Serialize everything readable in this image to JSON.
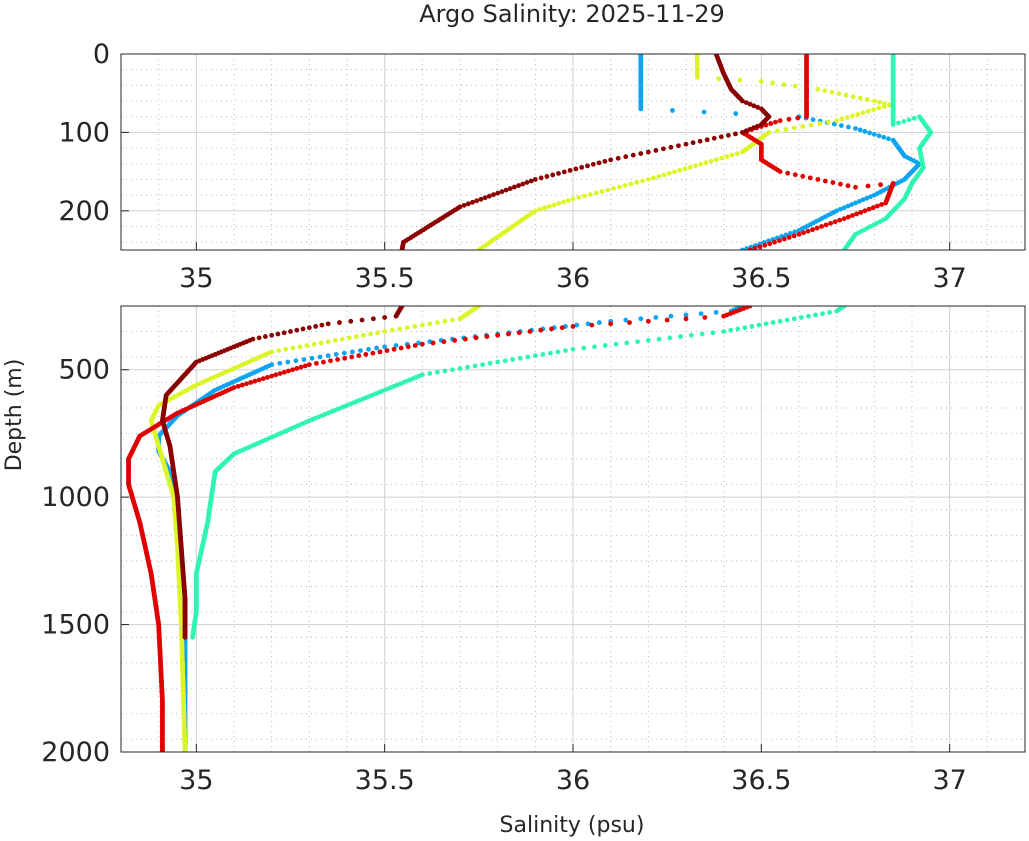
{
  "chart_data": {
    "type": "scatter",
    "title": "Argo Salinity: 2025-11-29",
    "xlabel": "Salinity (psu)",
    "ylabel": "Depth (m)",
    "xlim": [
      34.8,
      37.2
    ],
    "x_ticks": [
      35,
      35.5,
      36,
      36.5,
      37
    ],
    "x_tick_labels": [
      "35",
      "35.5",
      "36",
      "36.5",
      "37"
    ],
    "panels": [
      {
        "name": "upper",
        "ylim": [
          0,
          250
        ],
        "y_ticks": [
          0,
          100,
          200
        ],
        "y_tick_labels": [
          "0",
          "100",
          "200"
        ]
      },
      {
        "name": "lower",
        "ylim": [
          250,
          2000
        ],
        "y_ticks": [
          500,
          1000,
          1500,
          2000
        ],
        "y_tick_labels": [
          "500",
          "1000",
          "1500",
          "2000"
        ]
      }
    ],
    "series": [
      {
        "name": "profile-blue",
        "color": "#0ea5f0",
        "points": [
          [
            36.18,
            0
          ],
          [
            36.18,
            30
          ],
          [
            36.18,
            70
          ],
          [
            36.6,
            80
          ],
          [
            36.75,
            95
          ],
          [
            36.85,
            110
          ],
          [
            36.88,
            130
          ],
          [
            36.92,
            140
          ],
          [
            36.88,
            160
          ],
          [
            36.8,
            180
          ],
          [
            36.7,
            200
          ],
          [
            36.6,
            225
          ],
          [
            36.45,
            250
          ],
          [
            36.42,
            270
          ],
          [
            36.1,
            310
          ],
          [
            35.8,
            360
          ],
          [
            35.5,
            410
          ],
          [
            35.2,
            480
          ],
          [
            35.05,
            580
          ],
          [
            34.95,
            680
          ],
          [
            34.9,
            760
          ],
          [
            34.9,
            820
          ],
          [
            34.93,
            900
          ],
          [
            34.95,
            1000
          ],
          [
            34.96,
            1200
          ],
          [
            34.97,
            1400
          ],
          [
            34.97,
            1700
          ],
          [
            34.97,
            2000
          ]
        ]
      },
      {
        "name": "profile-yellow",
        "color": "#dcf52a",
        "points": [
          [
            36.33,
            0
          ],
          [
            36.33,
            30
          ],
          [
            36.5,
            35
          ],
          [
            36.65,
            45
          ],
          [
            36.8,
            60
          ],
          [
            36.84,
            65
          ],
          [
            36.7,
            85
          ],
          [
            36.52,
            100
          ],
          [
            36.45,
            125
          ],
          [
            36.2,
            160
          ],
          [
            36.0,
            185
          ],
          [
            35.9,
            200
          ],
          [
            35.75,
            250
          ],
          [
            35.7,
            300
          ],
          [
            35.5,
            350
          ],
          [
            35.2,
            430
          ],
          [
            35.0,
            560
          ],
          [
            34.9,
            640
          ],
          [
            34.88,
            700
          ],
          [
            34.9,
            800
          ],
          [
            34.92,
            900
          ],
          [
            34.94,
            1000
          ],
          [
            34.95,
            1200
          ],
          [
            34.96,
            1500
          ],
          [
            34.97,
            2000
          ]
        ]
      },
      {
        "name": "profile-red",
        "color": "#e00000",
        "points": [
          [
            36.62,
            0
          ],
          [
            36.62,
            40
          ],
          [
            36.62,
            80
          ],
          [
            36.55,
            85
          ],
          [
            36.45,
            100
          ],
          [
            36.5,
            115
          ],
          [
            36.5,
            135
          ],
          [
            36.55,
            150
          ],
          [
            36.65,
            160
          ],
          [
            36.75,
            170
          ],
          [
            36.85,
            165
          ],
          [
            36.83,
            190
          ],
          [
            36.72,
            210
          ],
          [
            36.6,
            230
          ],
          [
            36.47,
            250
          ],
          [
            36.4,
            290
          ],
          [
            36.0,
            330
          ],
          [
            35.6,
            400
          ],
          [
            35.3,
            480
          ],
          [
            35.1,
            570
          ],
          [
            34.95,
            670
          ],
          [
            34.85,
            760
          ],
          [
            34.82,
            850
          ],
          [
            34.82,
            950
          ],
          [
            34.85,
            1100
          ],
          [
            34.88,
            1300
          ],
          [
            34.9,
            1500
          ],
          [
            34.91,
            1800
          ],
          [
            34.91,
            2000
          ]
        ]
      },
      {
        "name": "profile-darkred",
        "color": "#8b0000",
        "points": [
          [
            36.38,
            0
          ],
          [
            36.4,
            25
          ],
          [
            36.42,
            45
          ],
          [
            36.45,
            60
          ],
          [
            36.5,
            70
          ],
          [
            36.52,
            80
          ],
          [
            36.5,
            90
          ],
          [
            36.45,
            100
          ],
          [
            36.3,
            115
          ],
          [
            36.1,
            135
          ],
          [
            35.9,
            160
          ],
          [
            35.7,
            195
          ],
          [
            35.55,
            240
          ],
          [
            35.53,
            290
          ],
          [
            35.35,
            320
          ],
          [
            35.15,
            380
          ],
          [
            35.0,
            470
          ],
          [
            34.92,
            600
          ],
          [
            34.91,
            700
          ],
          [
            34.93,
            800
          ],
          [
            34.95,
            1000
          ],
          [
            34.96,
            1200
          ],
          [
            34.97,
            1400
          ],
          [
            34.97,
            1550
          ]
        ]
      },
      {
        "name": "profile-aquamarine",
        "color": "#2ff5b0",
        "points": [
          [
            36.85,
            0
          ],
          [
            36.85,
            50
          ],
          [
            36.85,
            90
          ],
          [
            36.92,
            80
          ],
          [
            36.95,
            100
          ],
          [
            36.92,
            120
          ],
          [
            36.93,
            145
          ],
          [
            36.9,
            165
          ],
          [
            36.88,
            185
          ],
          [
            36.83,
            210
          ],
          [
            36.75,
            230
          ],
          [
            36.72,
            250
          ],
          [
            36.7,
            270
          ],
          [
            36.4,
            350
          ],
          [
            36.0,
            420
          ],
          [
            35.6,
            520
          ],
          [
            35.3,
            700
          ],
          [
            35.1,
            830
          ],
          [
            35.05,
            900
          ],
          [
            35.03,
            1100
          ],
          [
            35.0,
            1300
          ],
          [
            35.0,
            1450
          ],
          [
            34.99,
            1550
          ]
        ]
      }
    ]
  }
}
